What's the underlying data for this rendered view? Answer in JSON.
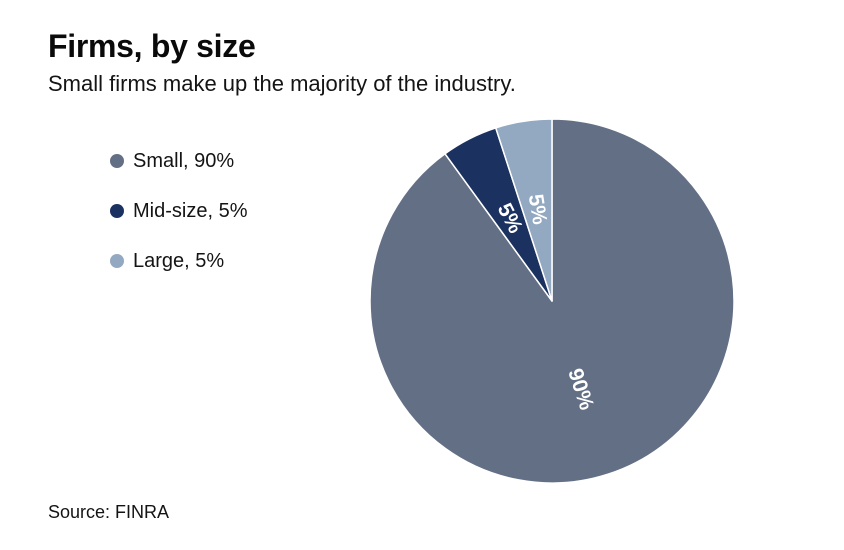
{
  "header": {
    "title": "Firms, by size",
    "subtitle": "Small firms make up the majority of the industry."
  },
  "legend": {
    "items": [
      {
        "label": "Small, 90%"
      },
      {
        "label": "Mid-size, 5%"
      },
      {
        "label": "Large, 5%"
      }
    ]
  },
  "footer": {
    "source": "Source: FINRA"
  },
  "chart_data": {
    "type": "pie",
    "title": "Firms, by size",
    "subtitle": "Small firms make up the majority of the industry.",
    "categories": [
      "Small",
      "Mid-size",
      "Large"
    ],
    "values": [
      90,
      5,
      5
    ],
    "slice_labels": [
      "90%",
      "5%",
      "5%"
    ],
    "colors": [
      "#626F85",
      "#1B3160",
      "#93A8C1"
    ],
    "slice_label_color": "#ffffff",
    "start_angle": "12 o'clock",
    "direction": "clockwise",
    "legend_position": "left",
    "source": "Source: FINRA"
  }
}
